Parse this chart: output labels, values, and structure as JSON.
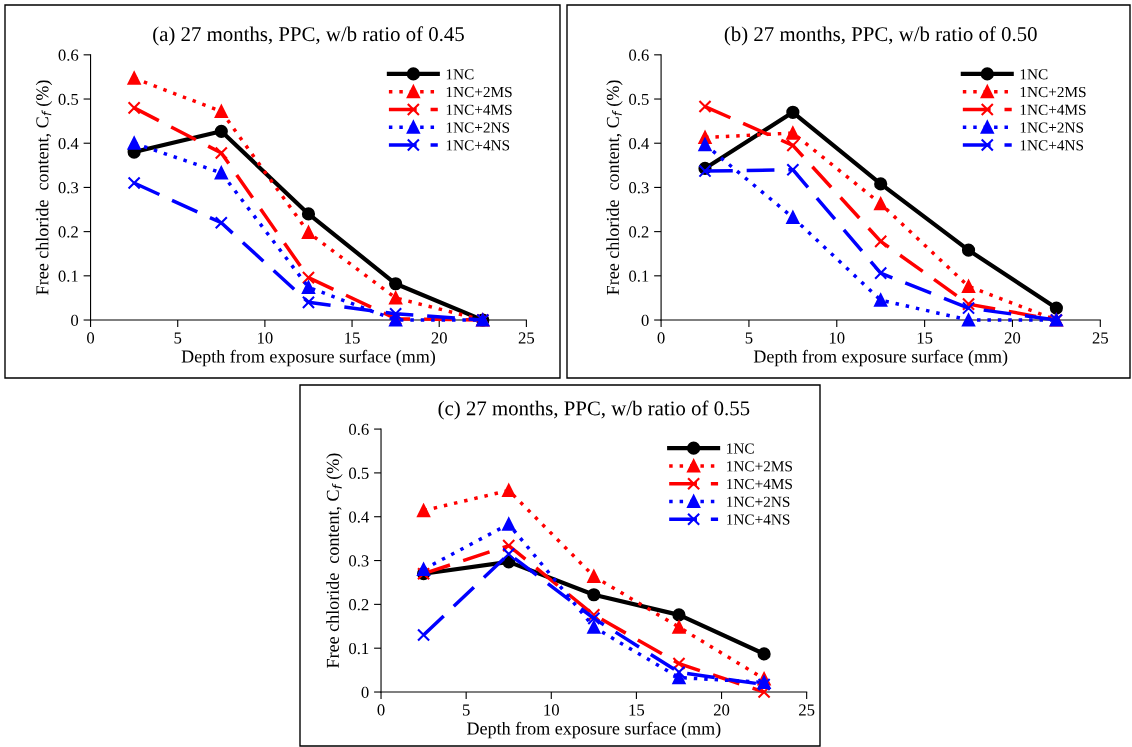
{
  "chart_data": [
    {
      "type": "line",
      "title": "(a) 27 months, PPC, w/b ratio of 0.45",
      "xlabel": "Depth from exposure surface (mm)",
      "ylabel": "Free chloride  content, C$_{f}$ (%)",
      "x": [
        2.5,
        7.5,
        12.5,
        17.5,
        22.5
      ],
      "xlim": [
        0,
        25
      ],
      "xticks": [
        0,
        5,
        10,
        15,
        20,
        25
      ],
      "ylim": [
        0,
        0.6
      ],
      "yticks": [
        0,
        0.1,
        0.2,
        0.3,
        0.4,
        0.5,
        0.6
      ],
      "grid": false,
      "legend": "top right",
      "series": [
        {
          "name": "1NC",
          "color": "#000000",
          "marker": "circle",
          "line_style": "solid",
          "values": [
            0.38,
            0.427,
            0.24,
            0.082,
            0
          ]
        },
        {
          "name": "1NC+2MS",
          "color": "#ff0000",
          "marker": "triangle",
          "line_style": "dotted",
          "values": [
            0.547,
            0.472,
            0.198,
            0.05,
            0
          ]
        },
        {
          "name": "1NC+4MS",
          "color": "#ff0000",
          "marker": "cross",
          "line_style": "dashed",
          "values": [
            0.48,
            0.378,
            0.096,
            0.003,
            0
          ]
        },
        {
          "name": "1NC+2NS",
          "color": "#0000ff",
          "marker": "triangle",
          "line_style": "dotted",
          "values": [
            0.4,
            0.333,
            0.074,
            0,
            0
          ]
        },
        {
          "name": "1NC+4NS",
          "color": "#0000ff",
          "marker": "cross",
          "line_style": "dashed",
          "values": [
            0.31,
            0.22,
            0.04,
            0.014,
            0
          ]
        }
      ]
    },
    {
      "type": "line",
      "title": "(b) 27 months, PPC, w/b ratio of 0.50",
      "xlabel": "Depth from exposure surface (mm)",
      "ylabel": "Free chloride  content, C$_{f}$ (%)",
      "x": [
        2.5,
        7.5,
        12.5,
        17.5,
        22.5
      ],
      "xlim": [
        0,
        25
      ],
      "xticks": [
        0,
        5,
        10,
        15,
        20,
        25
      ],
      "ylim": [
        0,
        0.6
      ],
      "yticks": [
        0,
        0.1,
        0.2,
        0.3,
        0.4,
        0.5,
        0.6
      ],
      "grid": false,
      "legend": "top right",
      "series": [
        {
          "name": "1NC",
          "color": "#000000",
          "marker": "circle",
          "line_style": "solid",
          "values": [
            0.343,
            0.47,
            0.308,
            0.158,
            0.027
          ]
        },
        {
          "name": "1NC+2MS",
          "color": "#ff0000",
          "marker": "triangle",
          "line_style": "dotted",
          "values": [
            0.413,
            0.423,
            0.263,
            0.076,
            0
          ]
        },
        {
          "name": "1NC+4MS",
          "color": "#ff0000",
          "marker": "cross",
          "line_style": "dashed",
          "values": [
            0.483,
            0.395,
            0.178,
            0.036,
            0
          ]
        },
        {
          "name": "1NC+2NS",
          "color": "#0000ff",
          "marker": "triangle",
          "line_style": "dotted",
          "values": [
            0.397,
            0.232,
            0.045,
            0,
            0
          ]
        },
        {
          "name": "1NC+4NS",
          "color": "#0000ff",
          "marker": "cross",
          "line_style": "dashed",
          "values": [
            0.337,
            0.34,
            0.106,
            0.027,
            0
          ]
        }
      ]
    },
    {
      "type": "line",
      "title": "(c) 27 months, PPC, w/b ratio of 0.55",
      "xlabel": "Depth from exposure surface (mm)",
      "ylabel": "Free chloride  content, C$_{f}$ (%)",
      "x": [
        2.5,
        7.5,
        12.5,
        17.5,
        22.5
      ],
      "xlim": [
        0,
        25
      ],
      "xticks": [
        0,
        5,
        10,
        15,
        20,
        25
      ],
      "ylim": [
        0,
        0.6
      ],
      "yticks": [
        0,
        0.1,
        0.2,
        0.3,
        0.4,
        0.5,
        0.6
      ],
      "grid": false,
      "legend": "top right",
      "series": [
        {
          "name": "1NC",
          "color": "#000000",
          "marker": "circle",
          "line_style": "solid",
          "values": [
            0.27,
            0.297,
            0.222,
            0.176,
            0.087
          ]
        },
        {
          "name": "1NC+2MS",
          "color": "#ff0000",
          "marker": "triangle",
          "line_style": "dotted",
          "values": [
            0.414,
            0.46,
            0.264,
            0.148,
            0.03
          ]
        },
        {
          "name": "1NC+4MS",
          "color": "#ff0000",
          "marker": "cross",
          "line_style": "dashed",
          "values": [
            0.27,
            0.334,
            0.176,
            0.065,
            0
          ]
        },
        {
          "name": "1NC+2NS",
          "color": "#0000ff",
          "marker": "triangle",
          "line_style": "dotted",
          "values": [
            0.28,
            0.383,
            0.148,
            0.033,
            0.022
          ]
        },
        {
          "name": "1NC+4NS",
          "color": "#0000ff",
          "marker": "cross",
          "line_style": "dashed",
          "values": [
            0.13,
            0.315,
            0.168,
            0.045,
            0.017
          ]
        }
      ]
    }
  ]
}
